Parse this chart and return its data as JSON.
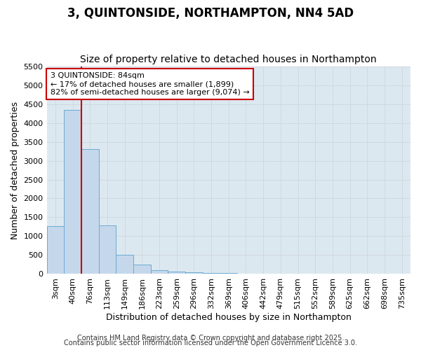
{
  "title1": "3, QUINTONSIDE, NORTHAMPTON, NN4 5AD",
  "title2": "Size of property relative to detached houses in Northampton",
  "xlabel": "Distribution of detached houses by size in Northampton",
  "ylabel": "Number of detached properties",
  "categories": [
    "3sqm",
    "40sqm",
    "76sqm",
    "113sqm",
    "149sqm",
    "186sqm",
    "223sqm",
    "259sqm",
    "296sqm",
    "332sqm",
    "369sqm",
    "406sqm",
    "442sqm",
    "479sqm",
    "515sqm",
    "552sqm",
    "589sqm",
    "625sqm",
    "662sqm",
    "698sqm",
    "735sqm"
  ],
  "values": [
    1270,
    4350,
    3300,
    1280,
    500,
    250,
    100,
    60,
    50,
    30,
    30,
    0,
    0,
    0,
    0,
    0,
    0,
    0,
    0,
    0,
    0
  ],
  "bar_color": "#c5d8eb",
  "bar_edge_color": "#6aaad4",
  "bar_edge_width": 0.7,
  "vline_color": "#cc0000",
  "vline_index": 2,
  "ylim": [
    0,
    5500
  ],
  "yticks": [
    0,
    500,
    1000,
    1500,
    2000,
    2500,
    3000,
    3500,
    4000,
    4500,
    5000,
    5500
  ],
  "annotation_text": "3 QUINTONSIDE: 84sqm\n← 17% of detached houses are smaller (1,899)\n82% of semi-detached houses are larger (9,074) →",
  "annotation_box_facecolor": "#ffffff",
  "annotation_box_edgecolor": "#cc0000",
  "grid_color": "#d0d8e0",
  "plot_bg_color": "#dce8f0",
  "fig_bg_color": "#ffffff",
  "footer1": "Contains HM Land Registry data © Crown copyright and database right 2025.",
  "footer2": "Contains public sector information licensed under the Open Government Licence 3.0.",
  "title_fontsize": 12,
  "subtitle_fontsize": 10,
  "axis_label_fontsize": 9,
  "tick_fontsize": 8,
  "annotation_fontsize": 8,
  "footer_fontsize": 7
}
